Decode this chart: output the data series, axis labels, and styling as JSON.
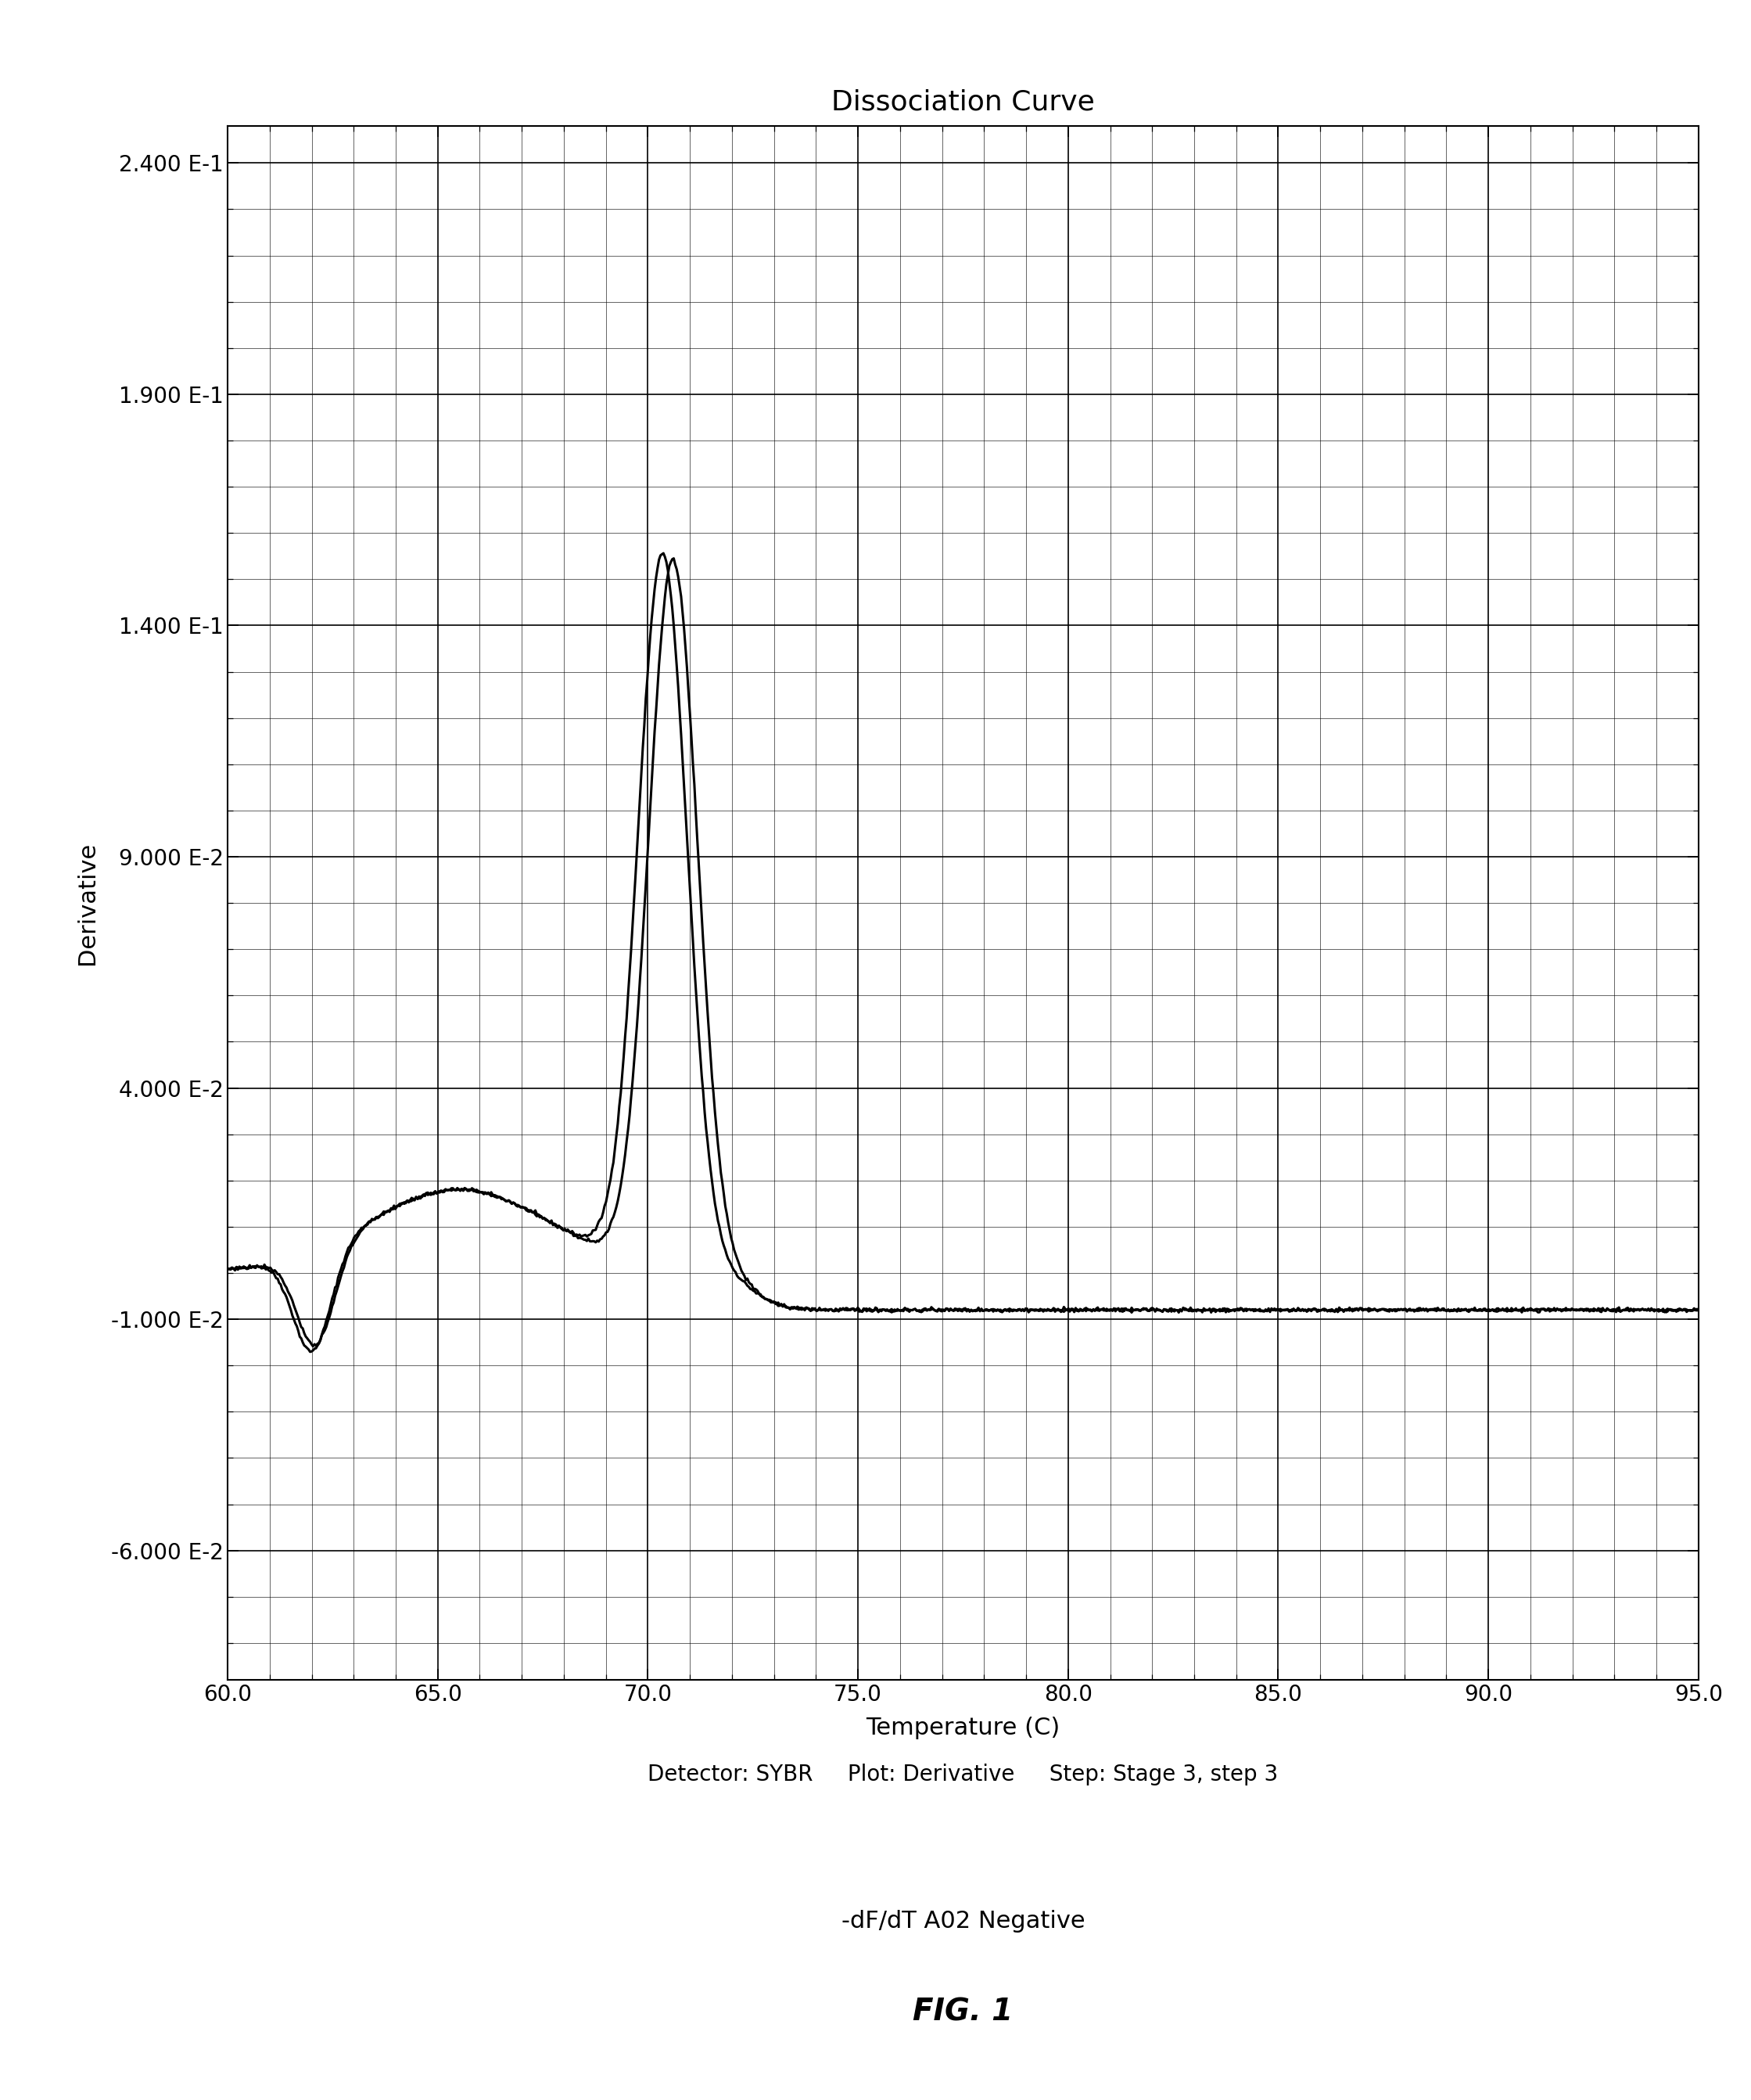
{
  "title": "Dissociation Curve",
  "xlabel": "Temperature (C)",
  "ylabel": "Derivative",
  "xlim": [
    60.0,
    95.0
  ],
  "ylim": [
    -0.088,
    0.248
  ],
  "yticks": [
    0.24,
    0.19,
    0.14,
    0.09,
    0.04,
    -0.01,
    -0.06
  ],
  "ytick_labels": [
    "2.400 E-1",
    "1.900 E-1",
    "1.400 E-1",
    "9.000 E-2",
    "4.000 E-2",
    "-1.000 E-2",
    "-6.000 E-2"
  ],
  "xticks": [
    60.0,
    65.0,
    70.0,
    75.0,
    80.0,
    85.0,
    90.0,
    95.0
  ],
  "xtick_labels": [
    "60.0",
    "65.0",
    "70.0",
    "75.0",
    "80.0",
    "85.0",
    "90.0",
    "95.0"
  ],
  "footer_text": "Detector: SYBR     Plot: Derivative     Step: Stage 3, step 3",
  "caption1": "-dF/dT A02 Negative",
  "caption2": "FIG. 1",
  "line_color": "#000000",
  "background_color": "#ffffff",
  "grid_color": "#000000",
  "title_fontsize": 26,
  "label_fontsize": 22,
  "tick_fontsize": 20,
  "footer_fontsize": 20,
  "caption1_fontsize": 22,
  "caption2_fontsize": 28
}
